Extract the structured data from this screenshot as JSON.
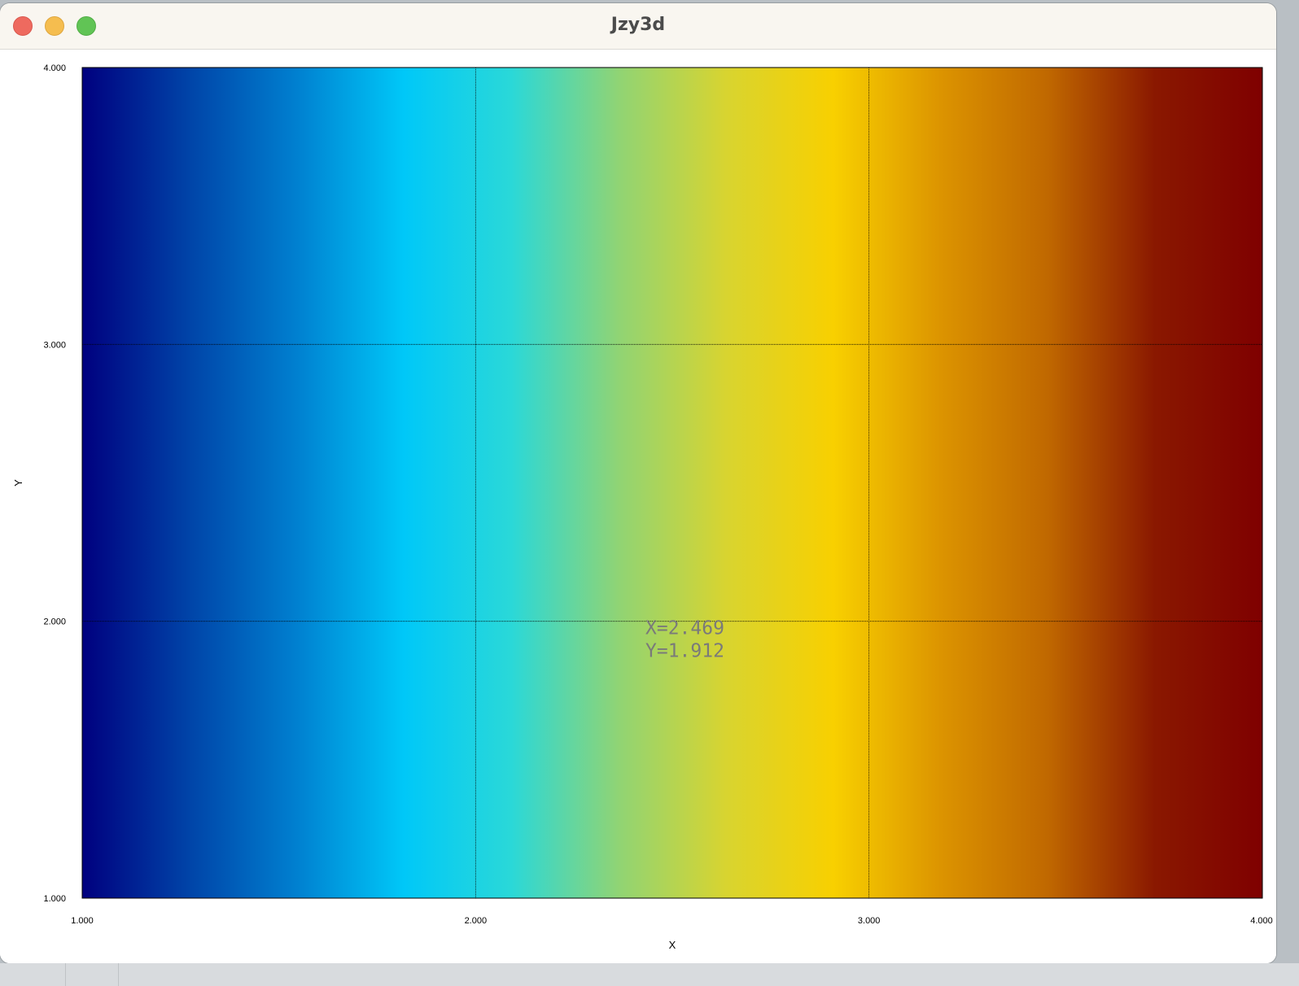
{
  "window": {
    "title": "Jzy3d"
  },
  "chart_data": {
    "type": "heatmap",
    "title": "",
    "xlabel": "X",
    "ylabel": "Y",
    "xlim": [
      1.0,
      4.0
    ],
    "ylim": [
      1.0,
      4.0
    ],
    "x_ticks": [
      "1.000",
      "2.000",
      "3.000",
      "4.000"
    ],
    "y_ticks": [
      "1.000",
      "2.000",
      "3.000",
      "4.000"
    ],
    "x_tick_values": [
      1,
      2,
      3,
      4
    ],
    "y_tick_values": [
      1,
      2,
      3,
      4
    ],
    "grid": true,
    "colormap": [
      "#00007f",
      "#0044a8",
      "#0080d0",
      "#00c8f8",
      "#2ad8d8",
      "#90d474",
      "#d8d430",
      "#f8d000",
      "#dc9400",
      "#c06800",
      "#8a1800",
      "#7f0000"
    ],
    "readout": {
      "x_text": "X=2.469",
      "y_text": "Y=1.912",
      "x": 2.469,
      "y": 1.912
    }
  }
}
